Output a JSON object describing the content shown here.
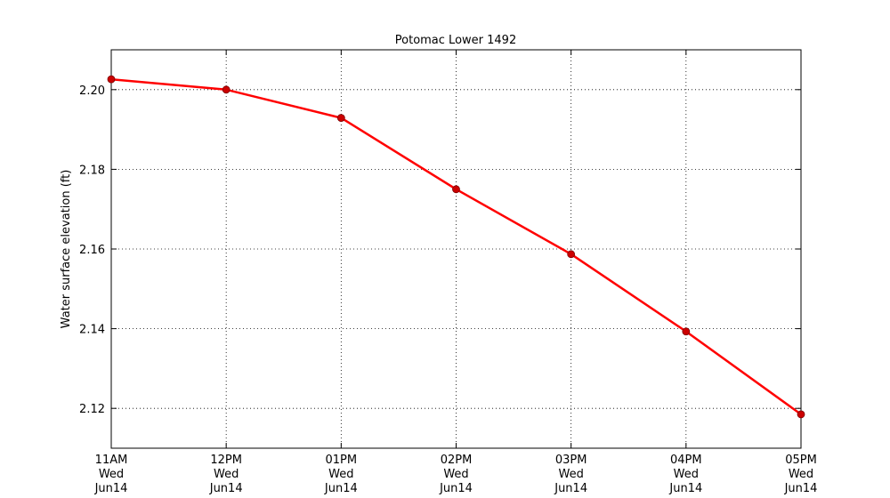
{
  "chart_data": {
    "type": "line",
    "title": "Potomac Lower 1492",
    "ylabel": "Water surface elevation (ft)",
    "xlabel": "",
    "ylim": [
      2.11,
      2.21
    ],
    "yticks": [
      "2.12",
      "2.14",
      "2.16",
      "2.18",
      "2.20"
    ],
    "grid": true,
    "categories": [
      [
        "11AM",
        "Wed",
        "Jun14"
      ],
      [
        "12PM",
        "Wed",
        "Jun14"
      ],
      [
        "01PM",
        "Wed",
        "Jun14"
      ],
      [
        "02PM",
        "Wed",
        "Jun14"
      ],
      [
        "03PM",
        "Wed",
        "Jun14"
      ],
      [
        "04PM",
        "Wed",
        "Jun14"
      ],
      [
        "05PM",
        "Wed",
        "Jun14"
      ]
    ],
    "series": [
      {
        "values": [
          2.2026,
          2.2,
          2.1929,
          2.175,
          2.1587,
          2.1393,
          2.1185
        ],
        "color": "#ff0000",
        "marker_color": "#cc0000"
      }
    ]
  }
}
